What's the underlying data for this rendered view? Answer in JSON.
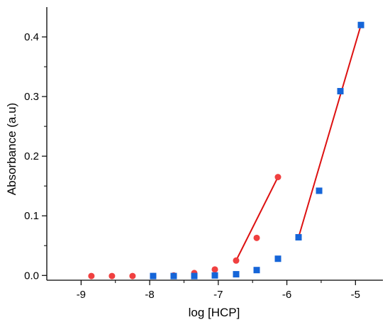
{
  "chart_data": {
    "type": "scatter",
    "title": "",
    "xlabel": "log [HCP]",
    "ylabel": "Absorbance (a.u)",
    "xlim": [
      -9.5,
      -4.6
    ],
    "ylim": [
      -0.008,
      0.45
    ],
    "x_ticks": [
      -9,
      -8,
      -7,
      -6,
      -5
    ],
    "y_ticks": [
      0.0,
      0.1,
      0.2,
      0.3,
      0.4
    ],
    "x_tick_labels": [
      "-9",
      "-8",
      "-7",
      "-6",
      "-5"
    ],
    "y_tick_labels": [
      "0.0",
      "0.1",
      "0.2",
      "0.3",
      "0.4"
    ],
    "grid": false,
    "legend": "none",
    "series": [
      {
        "marker": "circle",
        "color": "#f04040",
        "x": [
          -8.85,
          -8.55,
          -8.25,
          -7.95,
          -7.65,
          -7.35,
          -7.05,
          -6.74,
          -6.44,
          -6.13
        ],
        "y": [
          -0.001,
          -0.001,
          -0.001,
          -0.001,
          0.0,
          0.004,
          0.01,
          0.025,
          0.063,
          0.165
        ]
      },
      {
        "marker": "square",
        "color": "#1565d8",
        "x": [
          -7.95,
          -7.65,
          -7.35,
          -7.05,
          -6.74,
          -6.44,
          -6.13,
          -5.83,
          -5.53,
          -5.22,
          -4.92
        ],
        "y": [
          -0.001,
          -0.001,
          -0.001,
          0.0,
          0.002,
          0.009,
          0.028,
          0.064,
          0.142,
          0.309,
          0.42
        ]
      }
    ],
    "fit_lines": [
      {
        "color": "#dd1111",
        "x": [
          -6.74,
          -6.13
        ],
        "y": [
          0.025,
          0.165
        ]
      },
      {
        "color": "#dd1111",
        "x": [
          -5.83,
          -4.92
        ],
        "y": [
          0.064,
          0.42
        ]
      }
    ]
  }
}
